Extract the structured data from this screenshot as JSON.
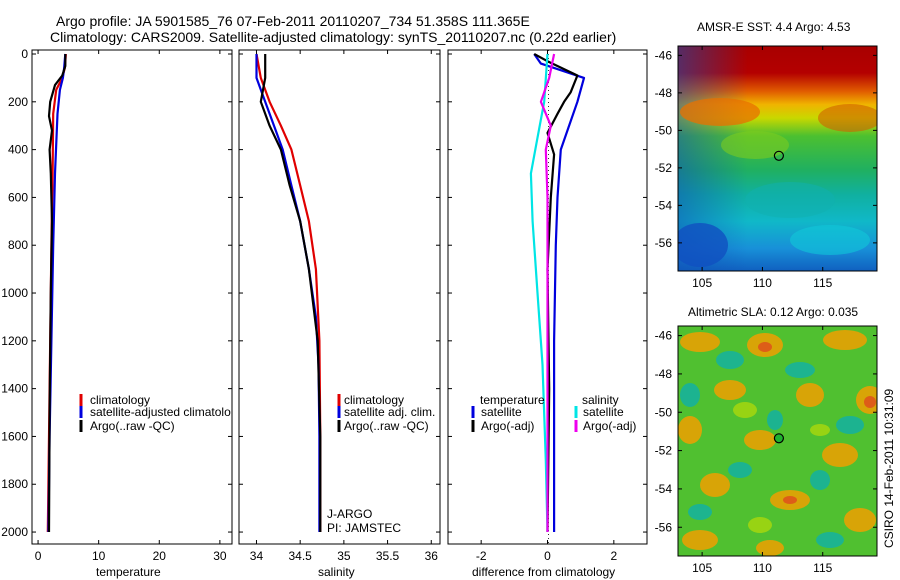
{
  "title": {
    "line1": "Argo profile: JA 5901585_76 07-Feb-2011 20110207_734 51.358S 111.365E",
    "line2": "Climatology: CARS2009. Satellite-adjusted climatology: synTS_20110207.nc (0.22d earlier)"
  },
  "colors": {
    "climatology": "#e00000",
    "satellite": "#0000dd",
    "argo": "#000000",
    "salinity_sat": "#00e5e5",
    "salinity_argo": "#ee00ee"
  },
  "chart_data": [
    {
      "type": "line",
      "id": "temperature",
      "xlabel": "temperature",
      "xlim": [
        -1,
        32
      ],
      "ylim": [
        0,
        2050
      ],
      "xticks": [
        0,
        10,
        20,
        30
      ],
      "xtick_labels": [
        "0",
        "10",
        "20",
        "30"
      ],
      "yticks": [
        0,
        200,
        400,
        600,
        800,
        1000,
        1200,
        1400,
        1600,
        1800,
        2000
      ],
      "ytick_labels": [
        "0",
        "200",
        "400",
        "600",
        "800",
        "1000",
        "1200",
        "1400",
        "1600",
        "1800",
        "2000"
      ],
      "legend": [
        "climatology",
        "satellite-adjusted climatolo",
        "Argo(..raw -QC)"
      ],
      "series": [
        {
          "name": "climatology",
          "color": "#e00000",
          "x": [
            4.6,
            4.4,
            4.0,
            3.0,
            2.5,
            2.4,
            2.2,
            2.0,
            1.8,
            1.6
          ],
          "y": [
            0,
            60,
            100,
            150,
            250,
            500,
            800,
            1200,
            1600,
            2000
          ]
        },
        {
          "name": "satellite",
          "color": "#0000dd",
          "x": [
            4.5,
            4.3,
            4.1,
            3.6,
            3.2,
            2.8,
            2.5,
            2.2,
            1.9,
            1.7
          ],
          "y": [
            0,
            60,
            100,
            150,
            250,
            500,
            800,
            1200,
            1600,
            2000
          ]
        },
        {
          "name": "argo",
          "color": "#000000",
          "x": [
            4.5,
            4.5,
            4.0,
            2.8,
            2.0,
            1.8,
            2.3,
            1.9,
            2.1,
            2.3,
            2.1,
            1.9,
            1.8
          ],
          "y": [
            0,
            50,
            90,
            130,
            200,
            260,
            320,
            400,
            500,
            700,
            1000,
            1500,
            2000
          ]
        }
      ]
    },
    {
      "type": "line",
      "id": "salinity",
      "xlabel": "salinity",
      "xlim": [
        33.8,
        36.1
      ],
      "ylim": [
        0,
        2050
      ],
      "xticks": [
        34,
        34.5,
        35,
        35.5,
        36
      ],
      "xtick_labels": [
        "34",
        "34.5",
        "35",
        "35.5",
        "36"
      ],
      "legend": [
        "climatology",
        "satellite adj. clim.",
        "Argo(..raw -QC)"
      ],
      "annotations": [
        "J-ARGO",
        "PI: JAMSTEC"
      ],
      "series": [
        {
          "name": "climatology",
          "color": "#e00000",
          "x": [
            34.0,
            34.05,
            34.15,
            34.28,
            34.4,
            34.5,
            34.6,
            34.68,
            34.72,
            34.73,
            34.73
          ],
          "y": [
            0,
            100,
            200,
            300,
            400,
            550,
            700,
            900,
            1200,
            1600,
            2000
          ]
        },
        {
          "name": "satellite",
          "color": "#0000dd",
          "x": [
            34.0,
            34.0,
            34.1,
            34.2,
            34.3,
            34.4,
            34.5,
            34.6,
            34.68,
            34.71,
            34.72,
            34.72
          ],
          "y": [
            0,
            100,
            200,
            300,
            400,
            550,
            700,
            900,
            1100,
            1300,
            1600,
            2000
          ]
        },
        {
          "name": "argo",
          "color": "#000000",
          "x": [
            34.1,
            34.1,
            34.05,
            34.15,
            34.28,
            34.38,
            34.5,
            34.6,
            34.7,
            34.73,
            34.73
          ],
          "y": [
            0,
            100,
            200,
            300,
            400,
            550,
            700,
            900,
            1200,
            1600,
            2000
          ]
        }
      ]
    },
    {
      "type": "line",
      "id": "difference",
      "xlabel": "difference from climatology",
      "xlim": [
        -3,
        3
      ],
      "ylim": [
        0,
        2050
      ],
      "xticks": [
        -2,
        0,
        2
      ],
      "xtick_labels": [
        "-2",
        "0",
        "2"
      ],
      "legend_left": {
        "header": "temperature",
        "items": [
          "satellite",
          "Argo(-adj)"
        ]
      },
      "legend_right": {
        "header": "salinity",
        "items": [
          "satellite",
          "Argo(-adj)"
        ]
      },
      "series": [
        {
          "name": "temperature satellite",
          "color": "#0000dd",
          "x": [
            -0.4,
            -0.2,
            1.1,
            0.9,
            0.4,
            0.3,
            0.25,
            0.2,
            0.2,
            0.2
          ],
          "y": [
            0,
            40,
            100,
            200,
            400,
            600,
            800,
            1200,
            1600,
            2000
          ]
        },
        {
          "name": "temperature Argo",
          "color": "#000000",
          "x": [
            -0.4,
            0.0,
            0.9,
            0.7,
            0.5,
            0.3,
            0.0,
            0.2,
            0.1,
            0.0,
            0.05,
            0.0
          ],
          "y": [
            0,
            30,
            90,
            160,
            200,
            250,
            330,
            420,
            600,
            900,
            1400,
            2000
          ]
        },
        {
          "name": "salinity satellite",
          "color": "#00e5e5",
          "x": [
            0.0,
            -0.1,
            -0.3,
            -0.5,
            -0.45,
            -0.3,
            -0.15,
            -0.05,
            0.0
          ],
          "y": [
            0,
            200,
            350,
            500,
            700,
            1000,
            1300,
            1700,
            2000
          ]
        },
        {
          "name": "salinity Argo",
          "color": "#ee00ee",
          "x": [
            0.2,
            0.05,
            -0.2,
            0.1,
            -0.05,
            0.0,
            0.0,
            0.0
          ],
          "y": [
            0,
            100,
            200,
            300,
            400,
            600,
            1000,
            2000
          ]
        }
      ]
    },
    {
      "type": "heatmap",
      "id": "sst_map",
      "title": "AMSR-E SST: 4.4 Argo: 4.53",
      "xticks": [
        105,
        110,
        115
      ],
      "xtick_labels": [
        "105",
        "110",
        "115"
      ],
      "xlim": [
        103,
        119.5
      ],
      "yticks": [
        -46,
        -48,
        -50,
        -52,
        -54,
        -56
      ],
      "ytick_labels": [
        "-46",
        "-48",
        "-50",
        "-52",
        "-54",
        "-56"
      ],
      "ylim": [
        -57.5,
        -45.5
      ],
      "argo_position": {
        "lon": 111.365,
        "lat": -51.358
      }
    },
    {
      "type": "heatmap",
      "id": "sla_map",
      "title": "Altimetric SLA: 0.12 Argo: 0.035",
      "xticks": [
        105,
        110,
        115
      ],
      "xtick_labels": [
        "105",
        "110",
        "115"
      ],
      "xlim": [
        103,
        119.5
      ],
      "yticks": [
        -46,
        -48,
        -50,
        -52,
        -54,
        -56
      ],
      "ytick_labels": [
        "-46",
        "-48",
        "-50",
        "-52",
        "-54",
        "-56"
      ],
      "ylim": [
        -57.5,
        -45.5
      ],
      "argo_position": {
        "lon": 111.365,
        "lat": -51.358
      }
    }
  ],
  "footer": {
    "credit": "CSIRO 14-Feb-2011 10:31:09"
  }
}
